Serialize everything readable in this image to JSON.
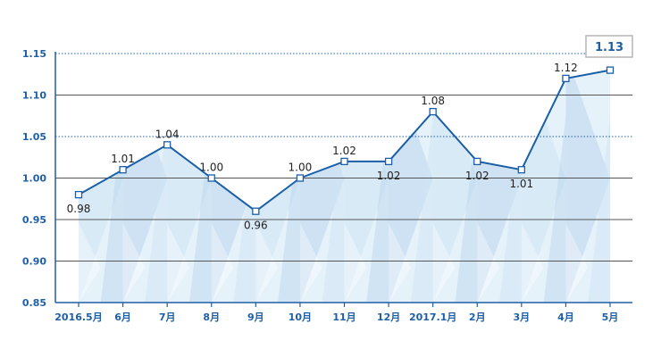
{
  "colors": {
    "line": "#1a5fa8",
    "marker_fill": "#ffffff",
    "tick_text": "#1f5fa6",
    "grid_solid": "#555555",
    "grid_dotted": "#1f5fa6",
    "area_light": "#e6f2fa",
    "area_mid": "#cde4f4",
    "area_dark": "#b9d6ee",
    "callout_border": "#b5b5b5"
  },
  "chart_data": {
    "type": "area",
    "categories": [
      "2016.5月",
      "6月",
      "7月",
      "8月",
      "9月",
      "10月",
      "11月",
      "12月",
      "2017.1月",
      "2月",
      "3月",
      "4月",
      "5月"
    ],
    "values": [
      0.98,
      1.01,
      1.04,
      1.0,
      0.96,
      1.0,
      1.02,
      1.02,
      1.08,
      1.02,
      1.01,
      1.12,
      1.13
    ],
    "data_labels": [
      "0.98",
      "1.01",
      "1.04",
      "1.00",
      "0.96",
      "1.00",
      "1.02",
      "1.02",
      "1.08",
      "1.02",
      "1.01",
      "1.12",
      "1.13"
    ],
    "y_ticks": [
      "0.85",
      "0.90",
      "0.95",
      "1.00",
      "1.05",
      "1.10",
      "1.15"
    ],
    "ylim": [
      0.85,
      1.15
    ],
    "grid": true,
    "title": "",
    "xlabel": "",
    "ylabel": ""
  }
}
